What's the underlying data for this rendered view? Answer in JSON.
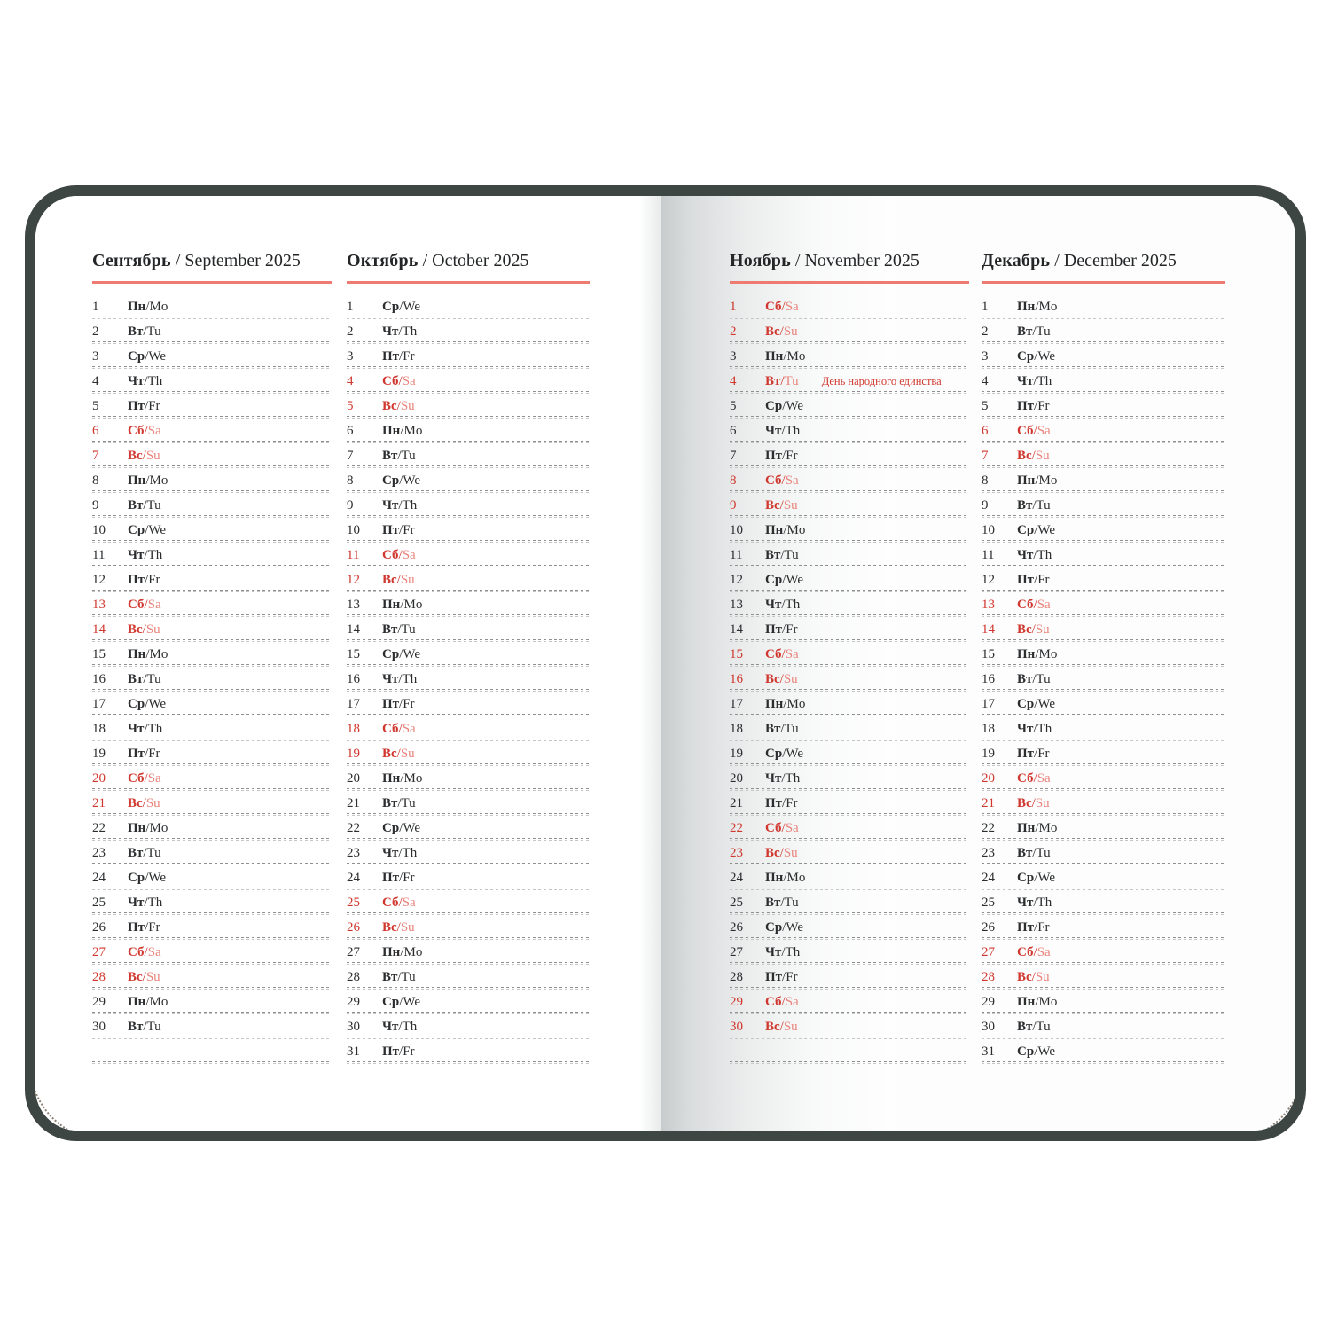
{
  "cover_color": "#3e4644",
  "accent_red": "#d0372e",
  "underline_red": "#ee7b72",
  "header_separator": "/",
  "day_separator": "/",
  "slots_per_column": 31,
  "months": [
    {
      "name_ru": "Сентябрь",
      "name_en": "September 2025",
      "days": [
        {
          "d": "1",
          "ru": "Пн",
          "en": "Mo"
        },
        {
          "d": "2",
          "ru": "Вт",
          "en": "Tu"
        },
        {
          "d": "3",
          "ru": "Ср",
          "en": "We"
        },
        {
          "d": "4",
          "ru": "Чт",
          "en": "Th"
        },
        {
          "d": "5",
          "ru": "Пт",
          "en": "Fr"
        },
        {
          "d": "6",
          "ru": "Сб",
          "en": "Sa",
          "red": true
        },
        {
          "d": "7",
          "ru": "Вс",
          "en": "Su",
          "red": true
        },
        {
          "d": "8",
          "ru": "Пн",
          "en": "Mo"
        },
        {
          "d": "9",
          "ru": "Вт",
          "en": "Tu"
        },
        {
          "d": "10",
          "ru": "Ср",
          "en": "We"
        },
        {
          "d": "11",
          "ru": "Чт",
          "en": "Th"
        },
        {
          "d": "12",
          "ru": "Пт",
          "en": "Fr"
        },
        {
          "d": "13",
          "ru": "Сб",
          "en": "Sa",
          "red": true
        },
        {
          "d": "14",
          "ru": "Вс",
          "en": "Su",
          "red": true
        },
        {
          "d": "15",
          "ru": "Пн",
          "en": "Mo"
        },
        {
          "d": "16",
          "ru": "Вт",
          "en": "Tu"
        },
        {
          "d": "17",
          "ru": "Ср",
          "en": "We"
        },
        {
          "d": "18",
          "ru": "Чт",
          "en": "Th"
        },
        {
          "d": "19",
          "ru": "Пт",
          "en": "Fr"
        },
        {
          "d": "20",
          "ru": "Сб",
          "en": "Sa",
          "red": true
        },
        {
          "d": "21",
          "ru": "Вс",
          "en": "Su",
          "red": true
        },
        {
          "d": "22",
          "ru": "Пн",
          "en": "Mo"
        },
        {
          "d": "23",
          "ru": "Вт",
          "en": "Tu"
        },
        {
          "d": "24",
          "ru": "Ср",
          "en": "We"
        },
        {
          "d": "25",
          "ru": "Чт",
          "en": "Th"
        },
        {
          "d": "26",
          "ru": "Пт",
          "en": "Fr"
        },
        {
          "d": "27",
          "ru": "Сб",
          "en": "Sa",
          "red": true
        },
        {
          "d": "28",
          "ru": "Вс",
          "en": "Su",
          "red": true
        },
        {
          "d": "29",
          "ru": "Пн",
          "en": "Mo"
        },
        {
          "d": "30",
          "ru": "Вт",
          "en": "Tu"
        }
      ]
    },
    {
      "name_ru": "Октябрь",
      "name_en": "October 2025",
      "days": [
        {
          "d": "1",
          "ru": "Ср",
          "en": "We"
        },
        {
          "d": "2",
          "ru": "Чт",
          "en": "Th"
        },
        {
          "d": "3",
          "ru": "Пт",
          "en": "Fr"
        },
        {
          "d": "4",
          "ru": "Сб",
          "en": "Sa",
          "red": true
        },
        {
          "d": "5",
          "ru": "Вс",
          "en": "Su",
          "red": true
        },
        {
          "d": "6",
          "ru": "Пн",
          "en": "Mo"
        },
        {
          "d": "7",
          "ru": "Вт",
          "en": "Tu"
        },
        {
          "d": "8",
          "ru": "Ср",
          "en": "We"
        },
        {
          "d": "9",
          "ru": "Чт",
          "en": "Th"
        },
        {
          "d": "10",
          "ru": "Пт",
          "en": "Fr"
        },
        {
          "d": "11",
          "ru": "Сб",
          "en": "Sa",
          "red": true
        },
        {
          "d": "12",
          "ru": "Вс",
          "en": "Su",
          "red": true
        },
        {
          "d": "13",
          "ru": "Пн",
          "en": "Mo"
        },
        {
          "d": "14",
          "ru": "Вт",
          "en": "Tu"
        },
        {
          "d": "15",
          "ru": "Ср",
          "en": "We"
        },
        {
          "d": "16",
          "ru": "Чт",
          "en": "Th"
        },
        {
          "d": "17",
          "ru": "Пт",
          "en": "Fr"
        },
        {
          "d": "18",
          "ru": "Сб",
          "en": "Sa",
          "red": true
        },
        {
          "d": "19",
          "ru": "Вс",
          "en": "Su",
          "red": true
        },
        {
          "d": "20",
          "ru": "Пн",
          "en": "Mo"
        },
        {
          "d": "21",
          "ru": "Вт",
          "en": "Tu"
        },
        {
          "d": "22",
          "ru": "Ср",
          "en": "We"
        },
        {
          "d": "23",
          "ru": "Чт",
          "en": "Th"
        },
        {
          "d": "24",
          "ru": "Пт",
          "en": "Fr"
        },
        {
          "d": "25",
          "ru": "Сб",
          "en": "Sa",
          "red": true
        },
        {
          "d": "26",
          "ru": "Вс",
          "en": "Su",
          "red": true
        },
        {
          "d": "27",
          "ru": "Пн",
          "en": "Mo"
        },
        {
          "d": "28",
          "ru": "Вт",
          "en": "Tu"
        },
        {
          "d": "29",
          "ru": "Ср",
          "en": "We"
        },
        {
          "d": "30",
          "ru": "Чт",
          "en": "Th"
        },
        {
          "d": "31",
          "ru": "Пт",
          "en": "Fr"
        }
      ]
    },
    {
      "name_ru": "Ноябрь",
      "name_en": "November 2025",
      "days": [
        {
          "d": "1",
          "ru": "Сб",
          "en": "Sa",
          "red": true
        },
        {
          "d": "2",
          "ru": "Вс",
          "en": "Su",
          "red": true
        },
        {
          "d": "3",
          "ru": "Пн",
          "en": "Mo"
        },
        {
          "d": "4",
          "ru": "Вт",
          "en": "Tu",
          "red": true,
          "note": "День народного единства"
        },
        {
          "d": "5",
          "ru": "Ср",
          "en": "We"
        },
        {
          "d": "6",
          "ru": "Чт",
          "en": "Th"
        },
        {
          "d": "7",
          "ru": "Пт",
          "en": "Fr"
        },
        {
          "d": "8",
          "ru": "Сб",
          "en": "Sa",
          "red": true
        },
        {
          "d": "9",
          "ru": "Вс",
          "en": "Su",
          "red": true
        },
        {
          "d": "10",
          "ru": "Пн",
          "en": "Mo"
        },
        {
          "d": "11",
          "ru": "Вт",
          "en": "Tu"
        },
        {
          "d": "12",
          "ru": "Ср",
          "en": "We"
        },
        {
          "d": "13",
          "ru": "Чт",
          "en": "Th"
        },
        {
          "d": "14",
          "ru": "Пт",
          "en": "Fr"
        },
        {
          "d": "15",
          "ru": "Сб",
          "en": "Sa",
          "red": true
        },
        {
          "d": "16",
          "ru": "Вс",
          "en": "Su",
          "red": true
        },
        {
          "d": "17",
          "ru": "Пн",
          "en": "Mo"
        },
        {
          "d": "18",
          "ru": "Вт",
          "en": "Tu"
        },
        {
          "d": "19",
          "ru": "Ср",
          "en": "We"
        },
        {
          "d": "20",
          "ru": "Чт",
          "en": "Th"
        },
        {
          "d": "21",
          "ru": "Пт",
          "en": "Fr"
        },
        {
          "d": "22",
          "ru": "Сб",
          "en": "Sa",
          "red": true
        },
        {
          "d": "23",
          "ru": "Вс",
          "en": "Su",
          "red": true
        },
        {
          "d": "24",
          "ru": "Пн",
          "en": "Mo"
        },
        {
          "d": "25",
          "ru": "Вт",
          "en": "Tu"
        },
        {
          "d": "26",
          "ru": "Ср",
          "en": "We"
        },
        {
          "d": "27",
          "ru": "Чт",
          "en": "Th"
        },
        {
          "d": "28",
          "ru": "Пт",
          "en": "Fr"
        },
        {
          "d": "29",
          "ru": "Сб",
          "en": "Sa",
          "red": true
        },
        {
          "d": "30",
          "ru": "Вс",
          "en": "Su",
          "red": true
        }
      ]
    },
    {
      "name_ru": "Декабрь",
      "name_en": "December 2025",
      "days": [
        {
          "d": "1",
          "ru": "Пн",
          "en": "Mo"
        },
        {
          "d": "2",
          "ru": "Вт",
          "en": "Tu"
        },
        {
          "d": "3",
          "ru": "Ср",
          "en": "We"
        },
        {
          "d": "4",
          "ru": "Чт",
          "en": "Th"
        },
        {
          "d": "5",
          "ru": "Пт",
          "en": "Fr"
        },
        {
          "d": "6",
          "ru": "Сб",
          "en": "Sa",
          "red": true
        },
        {
          "d": "7",
          "ru": "Вс",
          "en": "Su",
          "red": true
        },
        {
          "d": "8",
          "ru": "Пн",
          "en": "Mo"
        },
        {
          "d": "9",
          "ru": "Вт",
          "en": "Tu"
        },
        {
          "d": "10",
          "ru": "Ср",
          "en": "We"
        },
        {
          "d": "11",
          "ru": "Чт",
          "en": "Th"
        },
        {
          "d": "12",
          "ru": "Пт",
          "en": "Fr"
        },
        {
          "d": "13",
          "ru": "Сб",
          "en": "Sa",
          "red": true
        },
        {
          "d": "14",
          "ru": "Вс",
          "en": "Su",
          "red": true
        },
        {
          "d": "15",
          "ru": "Пн",
          "en": "Mo"
        },
        {
          "d": "16",
          "ru": "Вт",
          "en": "Tu"
        },
        {
          "d": "17",
          "ru": "Ср",
          "en": "We"
        },
        {
          "d": "18",
          "ru": "Чт",
          "en": "Th"
        },
        {
          "d": "19",
          "ru": "Пт",
          "en": "Fr"
        },
        {
          "d": "20",
          "ru": "Сб",
          "en": "Sa",
          "red": true
        },
        {
          "d": "21",
          "ru": "Вс",
          "en": "Su",
          "red": true
        },
        {
          "d": "22",
          "ru": "Пн",
          "en": "Mo"
        },
        {
          "d": "23",
          "ru": "Вт",
          "en": "Tu"
        },
        {
          "d": "24",
          "ru": "Ср",
          "en": "We"
        },
        {
          "d": "25",
          "ru": "Чт",
          "en": "Th"
        },
        {
          "d": "26",
          "ru": "Пт",
          "en": "Fr"
        },
        {
          "d": "27",
          "ru": "Сб",
          "en": "Sa",
          "red": true
        },
        {
          "d": "28",
          "ru": "Вс",
          "en": "Su",
          "red": true
        },
        {
          "d": "29",
          "ru": "Пн",
          "en": "Mo"
        },
        {
          "d": "30",
          "ru": "Вт",
          "en": "Tu"
        },
        {
          "d": "31",
          "ru": "Ср",
          "en": "We"
        }
      ]
    }
  ]
}
